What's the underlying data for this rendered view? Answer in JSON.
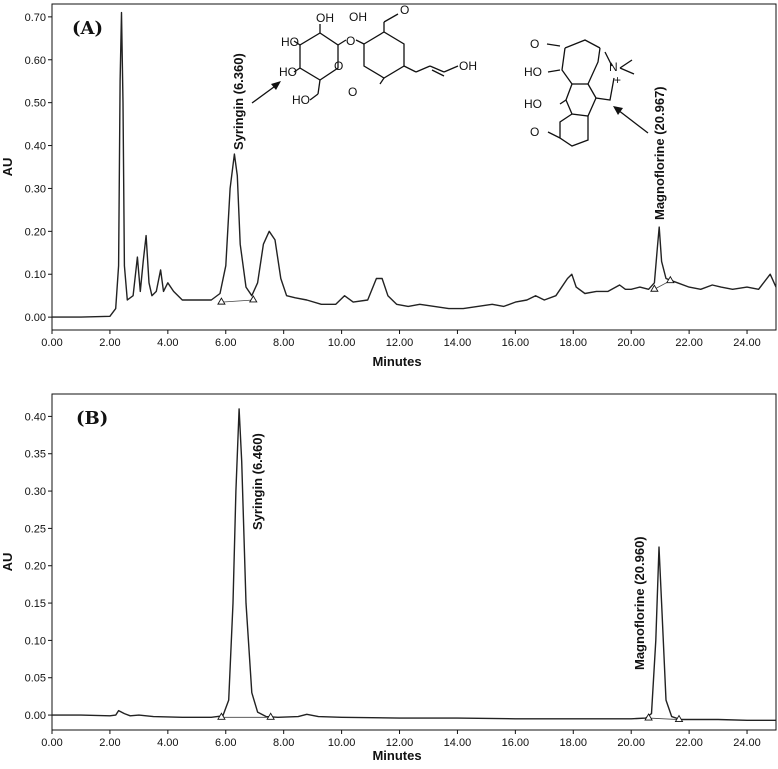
{
  "chart_data": [
    {
      "type": "line",
      "panel_label": "(A)",
      "xlabel": "Minutes",
      "ylabel": "AU",
      "xlim": [
        0,
        25
      ],
      "ylim": [
        -0.03,
        0.73
      ],
      "xticks": [
        "0.00",
        "2.00",
        "4.00",
        "6.00",
        "8.00",
        "10.00",
        "12.00",
        "14.00",
        "16.00",
        "18.00",
        "20.00",
        "22.00",
        "24.00"
      ],
      "yticks": [
        "0.00",
        "0.10",
        "0.20",
        "0.30",
        "0.40",
        "0.50",
        "0.60",
        "0.70"
      ],
      "series": [
        {
          "x": [
            0,
            1.0,
            2.0,
            2.2,
            2.3,
            2.35,
            2.4,
            2.45,
            2.5,
            2.6,
            2.8,
            2.95,
            3.05,
            3.15,
            3.25,
            3.35,
            3.45,
            3.6,
            3.75,
            3.85,
            4.0,
            4.2,
            4.5,
            5.0,
            5.5,
            5.8,
            6.0,
            6.15,
            6.3,
            6.4,
            6.5,
            6.7,
            6.9,
            7.1,
            7.3,
            7.5,
            7.7,
            7.9,
            8.1,
            8.4,
            8.8,
            9.3,
            9.8,
            10.1,
            10.4,
            10.9,
            11.2,
            11.4,
            11.6,
            11.9,
            12.3,
            12.7,
            13.2,
            13.7,
            14.2,
            14.7,
            15.2,
            15.6,
            16.0,
            16.4,
            16.7,
            17.0,
            17.4,
            17.8,
            17.95,
            18.1,
            18.4,
            18.8,
            19.2,
            19.6,
            19.8,
            20.0,
            20.3,
            20.6,
            20.8,
            20.9,
            20.967,
            21.05,
            21.2,
            21.4,
            21.6,
            22.0,
            22.4,
            22.8,
            23.1,
            23.5,
            24.0,
            24.4,
            24.8,
            25.0
          ],
          "y": [
            0.0,
            0.0,
            0.002,
            0.02,
            0.12,
            0.55,
            0.71,
            0.5,
            0.12,
            0.04,
            0.05,
            0.14,
            0.06,
            0.13,
            0.19,
            0.08,
            0.05,
            0.06,
            0.11,
            0.06,
            0.08,
            0.06,
            0.04,
            0.04,
            0.04,
            0.055,
            0.12,
            0.3,
            0.38,
            0.33,
            0.17,
            0.07,
            0.05,
            0.08,
            0.17,
            0.2,
            0.18,
            0.09,
            0.05,
            0.045,
            0.04,
            0.03,
            0.03,
            0.05,
            0.035,
            0.04,
            0.09,
            0.09,
            0.05,
            0.03,
            0.025,
            0.03,
            0.025,
            0.02,
            0.02,
            0.025,
            0.03,
            0.025,
            0.035,
            0.04,
            0.05,
            0.04,
            0.05,
            0.09,
            0.1,
            0.07,
            0.055,
            0.06,
            0.06,
            0.075,
            0.065,
            0.065,
            0.07,
            0.065,
            0.08,
            0.16,
            0.21,
            0.13,
            0.09,
            0.085,
            0.08,
            0.07,
            0.065,
            0.075,
            0.07,
            0.065,
            0.07,
            0.065,
            0.1,
            0.07
          ]
        }
      ],
      "peaks": [
        {
          "name": "Syringin (6.360)",
          "x": 6.36,
          "y": 0.38
        },
        {
          "name": "Magnoflorine (20.967)",
          "x": 20.967,
          "y": 0.21
        }
      ],
      "markers": [
        {
          "x": 5.85,
          "y": 0.035
        },
        {
          "x": 6.95,
          "y": 0.04
        },
        {
          "x": 20.8,
          "y": 0.065
        },
        {
          "x": 21.35,
          "y": 0.085
        }
      ],
      "structures": {
        "syringin_labels": [
          "OH",
          "HO",
          "OH",
          "O",
          "O",
          "HO",
          "O",
          "HO",
          "O",
          "OH"
        ],
        "magnoflorine_labels": [
          "O",
          "HO",
          "N",
          "+",
          "HO",
          "O"
        ]
      }
    },
    {
      "type": "line",
      "panel_label": "(B)",
      "xlabel": "Minutes",
      "ylabel": "AU",
      "xlim": [
        0,
        25
      ],
      "ylim": [
        -0.02,
        0.43
      ],
      "xticks": [
        "0.00",
        "2.00",
        "4.00",
        "6.00",
        "8.00",
        "10.00",
        "12.00",
        "14.00",
        "16.00",
        "18.00",
        "20.00",
        "22.00",
        "24.00"
      ],
      "yticks": [
        "0.00",
        "0.05",
        "0.10",
        "0.15",
        "0.20",
        "0.25",
        "0.30",
        "0.35",
        "0.40"
      ],
      "series": [
        {
          "x": [
            0,
            1.0,
            2.0,
            2.2,
            2.3,
            2.4,
            2.5,
            2.7,
            3.0,
            3.5,
            4.5,
            5.5,
            5.9,
            6.1,
            6.25,
            6.35,
            6.46,
            6.55,
            6.7,
            6.9,
            7.1,
            7.4,
            7.8,
            8.5,
            8.8,
            9.2,
            10,
            12,
            14,
            16,
            18,
            20.0,
            20.5,
            20.7,
            20.85,
            20.96,
            21.05,
            21.2,
            21.4,
            21.7,
            22,
            23,
            24,
            25
          ],
          "y": [
            0.0,
            0.0,
            -0.001,
            0.0,
            0.006,
            0.004,
            0.002,
            -0.001,
            0.0,
            -0.002,
            -0.003,
            -0.003,
            -0.001,
            0.02,
            0.15,
            0.3,
            0.41,
            0.34,
            0.15,
            0.03,
            0.004,
            -0.002,
            -0.003,
            -0.002,
            0.001,
            -0.002,
            -0.003,
            -0.004,
            -0.004,
            -0.005,
            -0.005,
            -0.005,
            -0.004,
            0.002,
            0.1,
            0.225,
            0.15,
            0.02,
            -0.002,
            -0.006,
            -0.006,
            -0.006,
            -0.007,
            -0.007
          ]
        }
      ],
      "peaks": [
        {
          "name": "Syringin (6.460)",
          "x": 6.46,
          "y": 0.41
        },
        {
          "name": "Magnoflorine (20.960)",
          "x": 20.96,
          "y": 0.225
        }
      ],
      "markers": [
        {
          "x": 5.85,
          "y": -0.003
        },
        {
          "x": 7.55,
          "y": -0.003
        },
        {
          "x": 20.6,
          "y": -0.004
        },
        {
          "x": 21.65,
          "y": -0.006
        }
      ]
    }
  ]
}
